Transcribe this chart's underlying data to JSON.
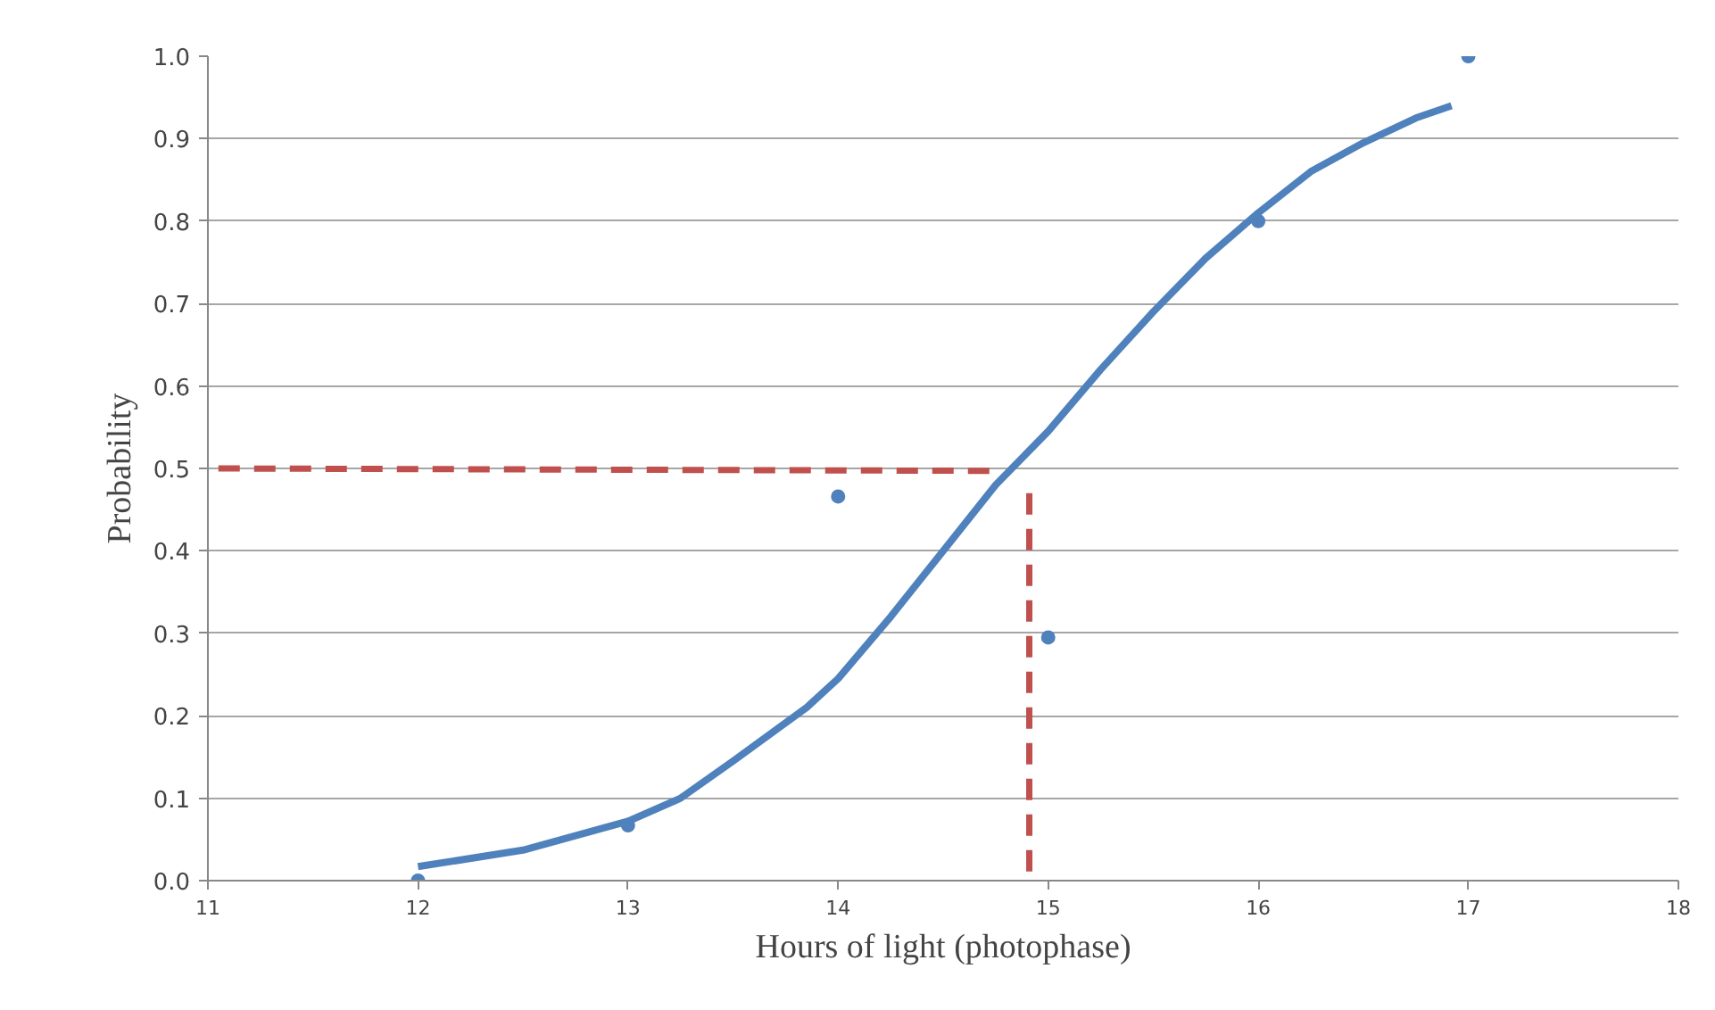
{
  "chart_data": {
    "type": "line",
    "xlabel": "Hours of light (photophase)",
    "ylabel": "Probability",
    "xlim": [
      11,
      18
    ],
    "xticks": [
      11,
      12,
      13,
      14,
      15,
      16,
      17,
      18
    ],
    "ylim": [
      0,
      1
    ],
    "yticks": [
      {
        "value": 0,
        "label": "0.0"
      },
      {
        "value": 0.1,
        "label": "0.1"
      },
      {
        "value": 0.2,
        "label": "0.2"
      },
      {
        "value": 0.3,
        "label": "0.3"
      },
      {
        "value": 0.4,
        "label": "0.4"
      },
      {
        "value": 0.5,
        "label": "0.5"
      },
      {
        "value": 0.6,
        "label": "0.6"
      },
      {
        "value": 0.7,
        "label": "0.7"
      },
      {
        "value": 0.8,
        "label": "0.8"
      },
      {
        "value": 0.9,
        "label": "0.9"
      },
      {
        "value": 1,
        "label": "1.0"
      }
    ],
    "grid": "y",
    "series": [
      {
        "type": "scatter",
        "marker": "circle",
        "color": "#4f81bd",
        "x": [
          12,
          13,
          14,
          15,
          16,
          17
        ],
        "values": [
          0,
          0.067,
          0.466,
          0.295,
          0.8,
          1.0
        ]
      },
      {
        "line_style": "solid",
        "color": "#4f81bd",
        "x": [
          12,
          12.5,
          13,
          13.25,
          13.5,
          13.85,
          14,
          14.25,
          14.5,
          14.75,
          15,
          15.25,
          15.5,
          15.75,
          16,
          16.25,
          16.5,
          16.75,
          16.92
        ],
        "values": [
          0.017,
          0.037,
          0.072,
          0.1,
          0.145,
          0.21,
          0.245,
          0.32,
          0.4,
          0.48,
          0.545,
          0.62,
          0.69,
          0.755,
          0.81,
          0.86,
          0.895,
          0.925,
          0.94
        ]
      },
      {
        "line_style": "dashed",
        "color": "#c0504d",
        "x": [
          11.05,
          14.75
        ],
        "values": [
          0.5,
          0.497
        ]
      },
      {
        "line_style": "dashed",
        "color": "#c0504d",
        "x": [
          14.91,
          14.91
        ],
        "values": [
          0.47,
          0.01
        ]
      }
    ]
  }
}
